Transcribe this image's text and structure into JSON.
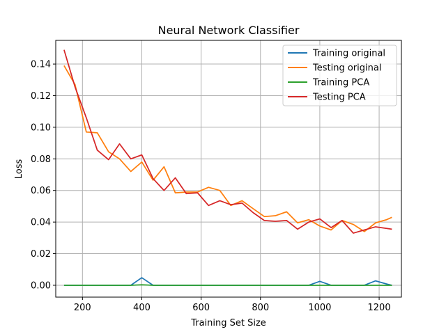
{
  "chart_data": {
    "type": "line",
    "title": "Neural Network Classifier",
    "xlabel": "Training Set Size",
    "ylabel": "Loss",
    "xlim": [
      110,
      1275
    ],
    "ylim": [
      -0.0075,
      0.155
    ],
    "xticks": [
      200,
      400,
      600,
      800,
      1000,
      1200
    ],
    "xtick_labels": [
      "200",
      "400",
      "600",
      "800",
      "1000",
      "1200"
    ],
    "yticks": [
      0.0,
      0.02,
      0.04,
      0.06,
      0.08,
      0.1,
      0.12,
      0.14
    ],
    "ytick_labels": [
      "0.00",
      "0.02",
      "0.04",
      "0.06",
      "0.08",
      "0.10",
      "0.12",
      "0.14"
    ],
    "grid": true,
    "legend_position": "top-right",
    "x": [
      138,
      175,
      213,
      250,
      288,
      325,
      363,
      400,
      438,
      475,
      513,
      550,
      588,
      625,
      663,
      700,
      738,
      775,
      813,
      850,
      888,
      925,
      963,
      1000,
      1038,
      1075,
      1113,
      1150,
      1188,
      1225,
      1243
    ],
    "series": [
      {
        "name": "Training original",
        "color": "#1f77b4",
        "values": [
          0,
          0,
          0,
          0,
          0,
          0,
          0,
          0.0048,
          0,
          0,
          0,
          0,
          0,
          0,
          0,
          0,
          0,
          0,
          0,
          0,
          0,
          0,
          0,
          0.0025,
          0,
          0,
          0,
          0,
          0.0028,
          0.0008,
          0
        ]
      },
      {
        "name": "Testing original",
        "color": "#ff7f0e",
        "values": [
          0.139,
          0.127,
          0.097,
          0.0965,
          0.0845,
          0.08,
          0.072,
          0.078,
          0.0665,
          0.075,
          0.0585,
          0.059,
          0.059,
          0.062,
          0.06,
          0.0505,
          0.0535,
          0.0485,
          0.0435,
          0.044,
          0.0465,
          0.0395,
          0.0415,
          0.0375,
          0.035,
          0.041,
          0.0385,
          0.034,
          0.0395,
          0.0415,
          0.043
        ]
      },
      {
        "name": "Training PCA",
        "color": "#2ca02c",
        "values": [
          0,
          0,
          0,
          0,
          0,
          0,
          0,
          0.0003,
          0,
          0,
          0,
          0,
          0,
          0,
          0,
          0,
          0,
          0,
          0,
          0,
          0,
          0,
          0,
          0,
          0,
          0,
          0,
          0,
          0,
          0,
          0
        ]
      },
      {
        "name": "Testing PCA",
        "color": "#d62728",
        "values": [
          0.149,
          0.1255,
          0.106,
          0.0855,
          0.0795,
          0.0895,
          0.08,
          0.0825,
          0.0675,
          0.06,
          0.068,
          0.058,
          0.0585,
          0.0505,
          0.0535,
          0.051,
          0.052,
          0.046,
          0.041,
          0.0405,
          0.041,
          0.0355,
          0.04,
          0.042,
          0.0365,
          0.041,
          0.033,
          0.035,
          0.037,
          0.036,
          0.0355
        ]
      }
    ]
  }
}
